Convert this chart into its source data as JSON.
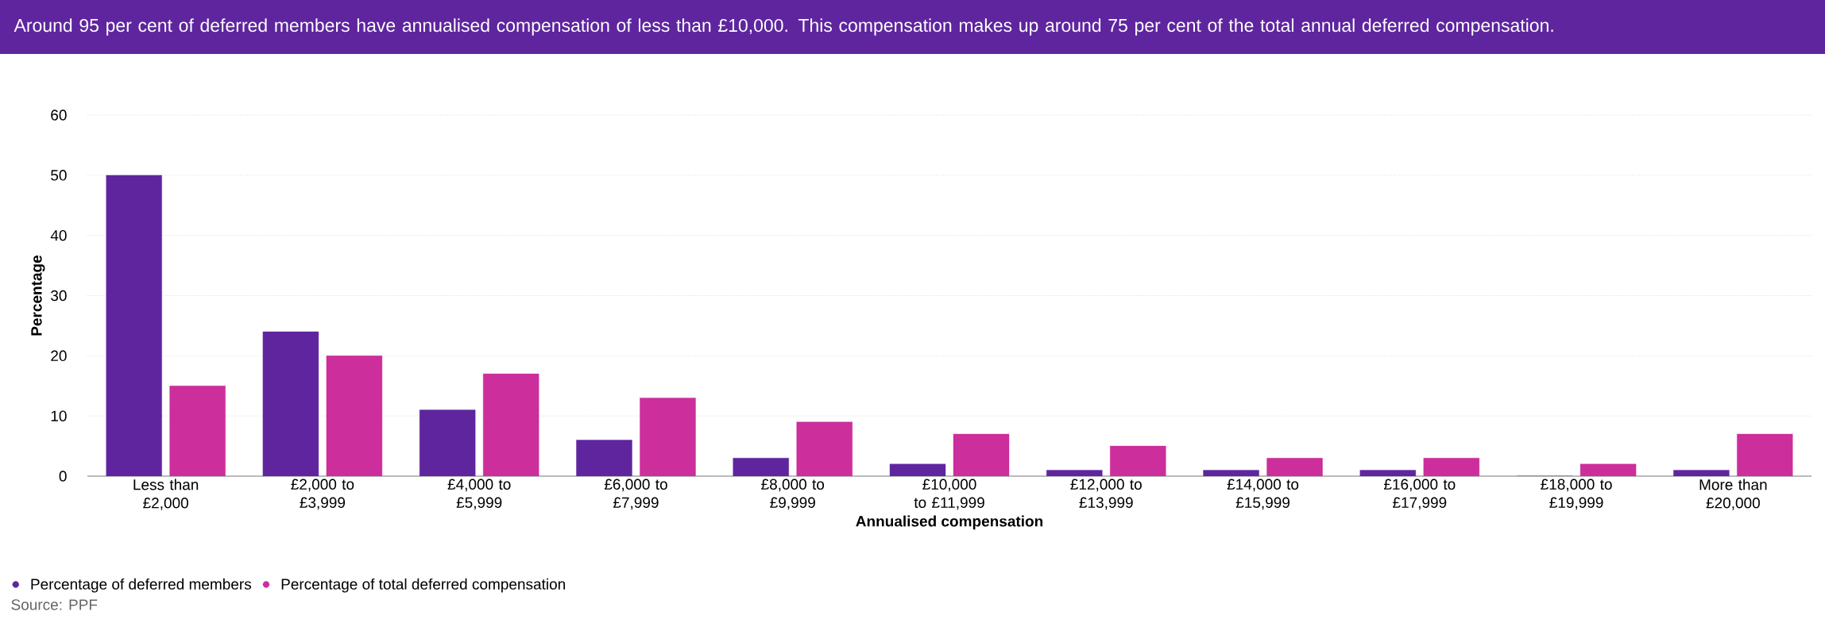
{
  "chart_data": {
    "type": "bar",
    "title": "Around 95 per cent of deferred members have annualised compensation of less than £10,000. This compensation makes up around 75 per cent of the total annual deferred compensation.",
    "xlabel": "Annualised compensation",
    "ylabel": "Percentage",
    "categories": [
      "Less than £2,000",
      "£2,000 to £3,999",
      "£4,000 to £5,999",
      "£6,000 to £7,999",
      "£8,000 to £9,999",
      "£10,000 to £11,999",
      "£12,000 to £13,999",
      "£14,000 to £15,999",
      "£16,000 to £17,999",
      "£18,000 to £19,999",
      "More than £20,000"
    ],
    "series": [
      {
        "name": "Percentage of deferred members",
        "color": "#5f259f",
        "values": [
          50,
          24,
          11,
          6,
          3,
          2,
          1,
          1,
          1,
          0,
          1
        ]
      },
      {
        "name": "Percentage of total deferred compensation",
        "color": "#cc2e9b",
        "values": [
          15,
          20,
          17,
          13,
          9,
          7,
          5,
          3,
          3,
          2,
          7
        ]
      }
    ],
    "ylim": [
      0,
      60
    ],
    "yticks": [
      0,
      10,
      20,
      30,
      40,
      50,
      60
    ],
    "grid": "y",
    "legend": "bottom left",
    "annotations": [
      "Source: PPF"
    ]
  }
}
